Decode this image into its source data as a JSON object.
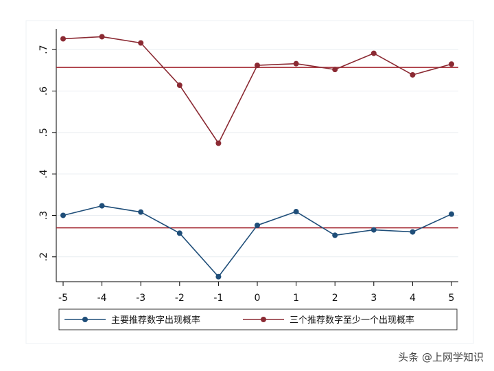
{
  "chart_data": {
    "type": "line",
    "x": [
      -5,
      -4,
      -3,
      -2,
      -1,
      0,
      1,
      2,
      3,
      4,
      5
    ],
    "series": [
      {
        "name": "主要推荐数字出现概率",
        "color": "#1f4e79",
        "values": [
          0.3,
          0.323,
          0.308,
          0.257,
          0.152,
          0.276,
          0.309,
          0.252,
          0.265,
          0.26,
          0.303
        ],
        "reference": 0.27
      },
      {
        "name": "三个推荐数字至少一个出现概率",
        "color": "#8b2a33",
        "values": [
          0.726,
          0.731,
          0.716,
          0.614,
          0.474,
          0.662,
          0.666,
          0.652,
          0.691,
          0.639,
          0.665
        ],
        "reference": 0.657
      }
    ],
    "reference_line_color": "#a0202a",
    "xlim": [
      -5,
      5
    ],
    "ylim": [
      0.14,
      0.75
    ],
    "x_ticks": [
      "-5",
      "-4",
      "-3",
      "-2",
      "-1",
      "0",
      "1",
      "2",
      "3",
      "4",
      "5"
    ],
    "y_ticks": [
      {
        "value": 0.2,
        "label": ".2"
      },
      {
        "value": 0.3,
        "label": ".3"
      },
      {
        "value": 0.4,
        "label": ".4"
      },
      {
        "value": 0.5,
        "label": ".5"
      },
      {
        "value": 0.6,
        "label": ".6"
      },
      {
        "value": 0.7,
        "label": ".7"
      }
    ],
    "grid": true,
    "legend_position": "bottom",
    "title": "",
    "xlabel": "",
    "ylabel": ""
  },
  "watermark": "头条 @上网学知识"
}
